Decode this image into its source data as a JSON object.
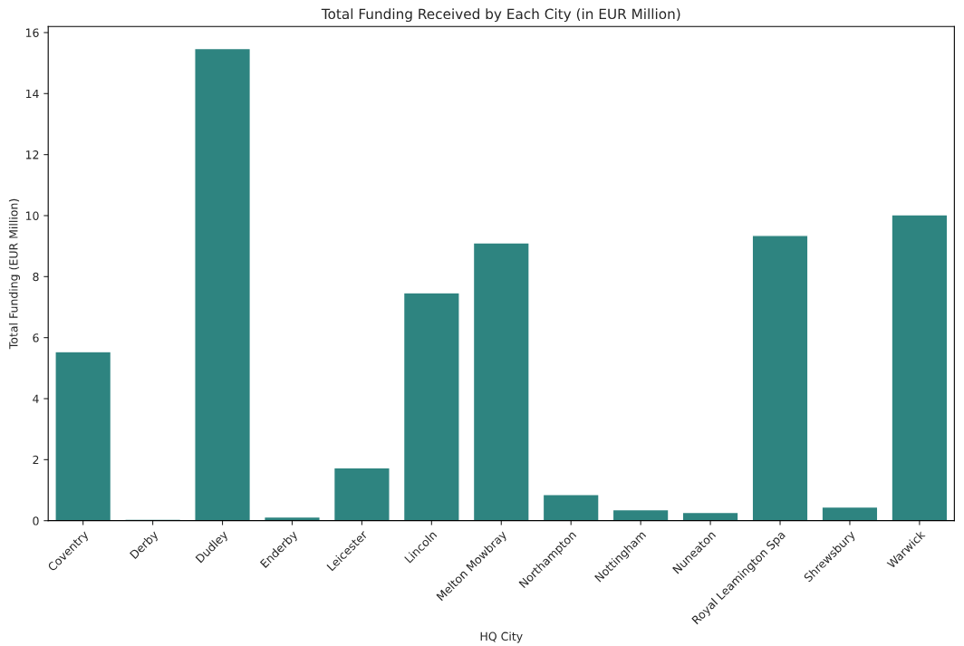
{
  "chart_data": {
    "type": "bar",
    "title": "Total Funding Received by Each City (in EUR Million)",
    "xlabel": "HQ City",
    "ylabel": "Total Funding (EUR Million)",
    "categories": [
      "Coventry",
      "Derby",
      "Dudley",
      "Enderby",
      "Leicester",
      "Lincoln",
      "Melton Mowbray",
      "Northampton",
      "Nottingham",
      "Nuneaton",
      "Royal Leamington Spa",
      "Shrewsbury",
      "Warwick"
    ],
    "values": [
      5.54,
      0.05,
      15.48,
      0.12,
      1.73,
      7.47,
      9.11,
      0.86,
      0.36,
      0.27,
      9.35,
      0.45,
      10.03
    ],
    "color": "#2e8480",
    "ylim": [
      0,
      16.2
    ],
    "yticks": [
      0,
      2,
      4,
      6,
      8,
      10,
      12,
      14,
      16
    ],
    "grid": false
  }
}
